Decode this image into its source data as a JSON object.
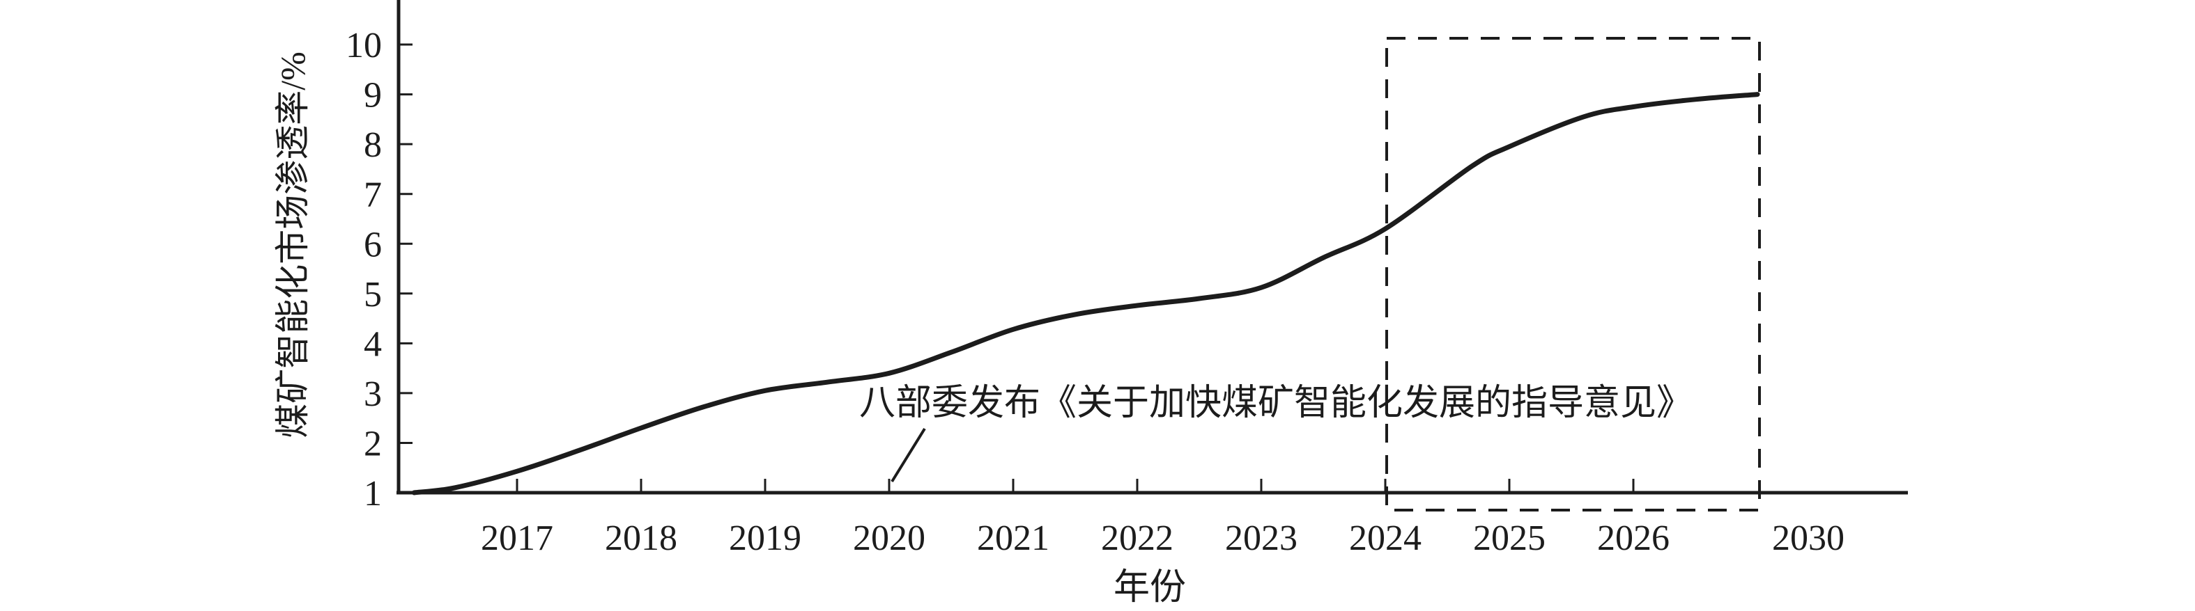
{
  "chart_data": {
    "type": "line",
    "title": "",
    "xlabel": "年份",
    "ylabel": "煤矿智能化市场渗透率/%",
    "x_tick_labels": [
      "2017",
      "2018",
      "2019",
      "2020",
      "2021",
      "2022",
      "2023",
      "2024",
      "2025",
      "2026",
      "2030"
    ],
    "y_tick_labels": [
      "1",
      "2",
      "3",
      "4",
      "5",
      "6",
      "7",
      "8",
      "9",
      "10"
    ],
    "ylim": [
      1,
      10
    ],
    "xlim_years": [
      2016.2,
      2030
    ],
    "grid": false,
    "legend": "none",
    "line_color": "#1c1c1c",
    "series": [
      {
        "name": "煤矿智能化市场渗透率",
        "points": [
          {
            "year": 2016.17,
            "value": 1.0
          },
          {
            "year": 2016.5,
            "value": 1.1
          },
          {
            "year": 2017,
            "value": 1.43
          },
          {
            "year": 2017.5,
            "value": 1.85
          },
          {
            "year": 2018,
            "value": 2.3
          },
          {
            "year": 2018.5,
            "value": 2.72
          },
          {
            "year": 2019,
            "value": 3.05
          },
          {
            "year": 2019.5,
            "value": 3.22
          },
          {
            "year": 2020,
            "value": 3.4
          },
          {
            "year": 2020.5,
            "value": 3.82
          },
          {
            "year": 2021,
            "value": 4.28
          },
          {
            "year": 2021.5,
            "value": 4.58
          },
          {
            "year": 2022,
            "value": 4.76
          },
          {
            "year": 2022.5,
            "value": 4.9
          },
          {
            "year": 2023,
            "value": 5.12
          },
          {
            "year": 2023.5,
            "value": 5.72
          },
          {
            "year": 2024,
            "value": 6.3
          },
          {
            "year": 2024.7,
            "value": 7.56
          },
          {
            "year": 2025,
            "value": 7.95
          },
          {
            "year": 2025.6,
            "value": 8.55
          },
          {
            "year": 2026,
            "value": 8.75
          },
          {
            "year": 2026.5,
            "value": 8.9
          },
          {
            "year": 2027,
            "value": 9.0
          }
        ]
      }
    ],
    "annotations": [
      {
        "text": "八部委发布《关于加快煤矿智能化发展的指导意见》",
        "points_to_year": 2020
      }
    ],
    "highlight_box": {
      "style": "dashed",
      "from_year": 2024,
      "to_year": 2027
    }
  }
}
